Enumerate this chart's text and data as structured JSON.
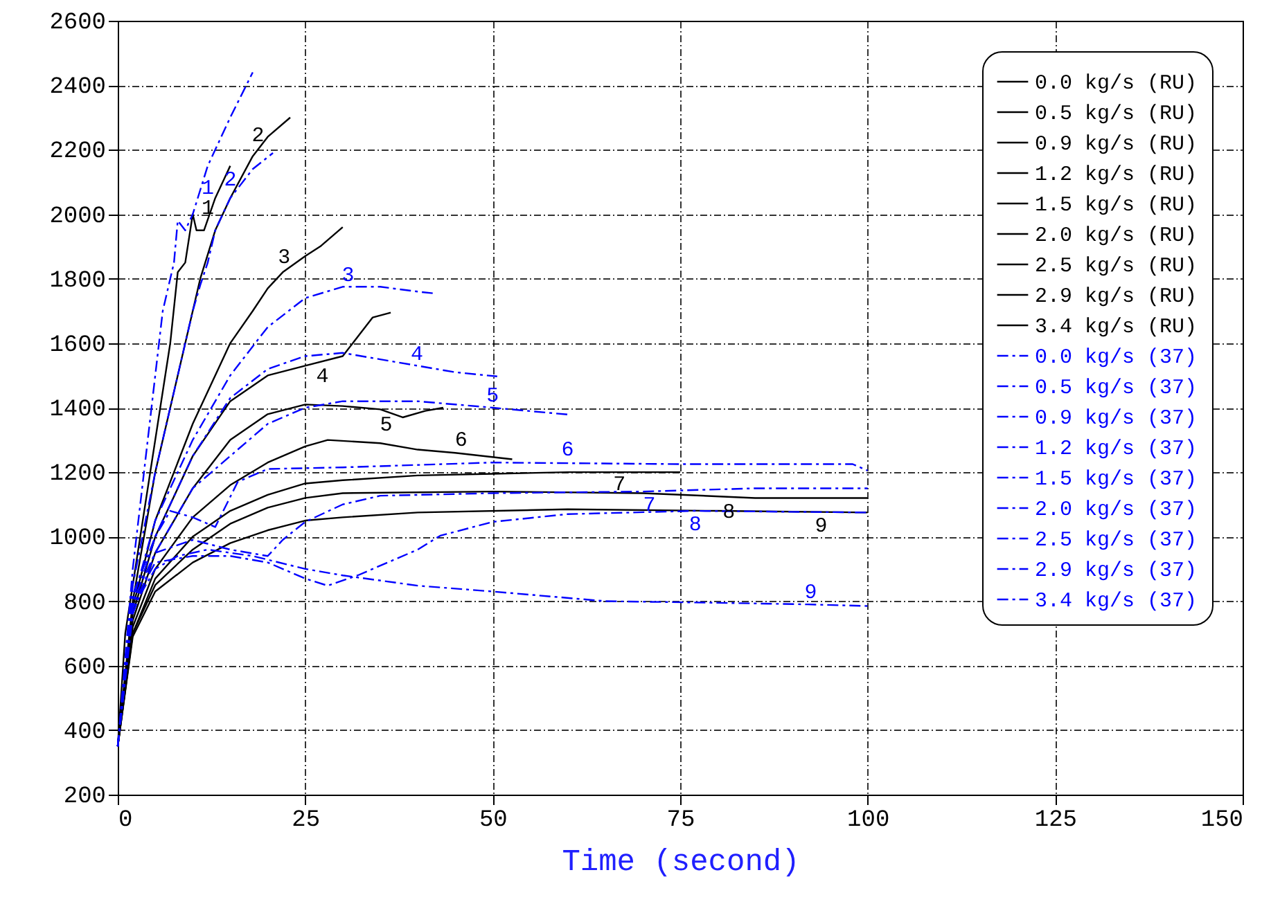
{
  "chart_data": {
    "type": "line",
    "xlabel": "Time (second)",
    "xlim": [
      0,
      150
    ],
    "xticks": [
      0,
      25,
      50,
      75,
      100,
      125,
      150
    ],
    "ylim": [
      200,
      2600
    ],
    "yticks": [
      200,
      400,
      600,
      800,
      1000,
      1200,
      1400,
      1600,
      1800,
      2000,
      2200,
      2400,
      2600
    ],
    "grid": true,
    "legend": "top right",
    "marker": "none",
    "line_style": "solid",
    "series": [
      {
        "name": "0.0 kg/s (RU)",
        "color": "#000000",
        "x": [
          0,
          1,
          3,
          5,
          7,
          8,
          9,
          10,
          10.5,
          11.5,
          13,
          15
        ],
        "values": [
          350,
          700,
          1000,
          1300,
          1600,
          1820,
          1850,
          2000,
          1950,
          1950,
          2050,
          2150
        ]
      },
      {
        "name": "0.5 kg/s (RU)",
        "color": "#000000",
        "x": [
          0,
          2,
          5,
          8,
          11,
          13,
          15,
          18,
          20,
          23
        ],
        "values": [
          350,
          800,
          1200,
          1500,
          1800,
          1950,
          2050,
          2180,
          2240,
          2300
        ]
      },
      {
        "name": "0.9 kg/s (RU)",
        "color": "#000000",
        "x": [
          0,
          2,
          5,
          10,
          15,
          18,
          20,
          22,
          25,
          27,
          30
        ],
        "values": [
          350,
          780,
          1050,
          1350,
          1600,
          1700,
          1770,
          1820,
          1870,
          1900,
          1960
        ]
      },
      {
        "name": "1.2 kg/s (RU)",
        "color": "#000000",
        "x": [
          0,
          2,
          5,
          10,
          15,
          20,
          25,
          30,
          32,
          34,
          36.4
        ],
        "values": [
          350,
          760,
          1000,
          1250,
          1420,
          1500,
          1530,
          1560,
          1620,
          1680,
          1695
        ]
      },
      {
        "name": "1.5 kg/s (RU)",
        "color": "#000000",
        "x": [
          0,
          2,
          5,
          10,
          15,
          20,
          25,
          30,
          35,
          38,
          41,
          43.4
        ],
        "values": [
          350,
          740,
          950,
          1150,
          1300,
          1380,
          1410,
          1405,
          1395,
          1370,
          1390,
          1400
        ]
      },
      {
        "name": "2.0 kg/s (RU)",
        "color": "#000000",
        "x": [
          0,
          2,
          5,
          10,
          15,
          20,
          25,
          28,
          35,
          40,
          45,
          52.6
        ],
        "values": [
          350,
          720,
          900,
          1060,
          1160,
          1230,
          1280,
          1300,
          1290,
          1270,
          1260,
          1240
        ]
      },
      {
        "name": "2.5 kg/s (RU)",
        "color": "#000000",
        "x": [
          0,
          2,
          5,
          10,
          15,
          20,
          25,
          30,
          40,
          50,
          60,
          75
        ],
        "values": [
          350,
          700,
          870,
          1000,
          1080,
          1130,
          1165,
          1175,
          1190,
          1195,
          1200,
          1200
        ]
      },
      {
        "name": "2.9 kg/s (RU)",
        "color": "#000000",
        "x": [
          0,
          2,
          5,
          10,
          15,
          20,
          25,
          30,
          50,
          70,
          85,
          100
        ],
        "values": [
          350,
          700,
          850,
          960,
          1040,
          1090,
          1120,
          1135,
          1140,
          1135,
          1120,
          1120
        ]
      },
      {
        "name": "3.4 kg/s (RU)",
        "color": "#000000",
        "x": [
          0,
          2,
          5,
          10,
          15,
          20,
          25,
          30,
          40,
          60,
          80,
          100
        ],
        "values": [
          350,
          690,
          830,
          920,
          980,
          1020,
          1050,
          1060,
          1075,
          1085,
          1080,
          1075
        ]
      },
      {
        "name": "0.0 kg/s (37)",
        "color": "#0000ff",
        "line_style": "dashed",
        "x": [
          0,
          2,
          4,
          6,
          7.5,
          8,
          9,
          10,
          12,
          15,
          18
        ],
        "values": [
          350,
          900,
          1300,
          1700,
          1850,
          1980,
          1950,
          2000,
          2150,
          2300,
          2440
        ]
      },
      {
        "name": "0.5 kg/s (37)",
        "color": "#0000ff",
        "line_style": "dashed",
        "x": [
          0,
          2,
          5,
          8,
          10,
          11,
          12,
          13,
          15,
          18,
          20.7
        ],
        "values": [
          350,
          850,
          1200,
          1500,
          1700,
          1780,
          1850,
          1950,
          2050,
          2140,
          2190
        ]
      },
      {
        "name": "0.9 kg/s (37)",
        "color": "#0000ff",
        "line_style": "dashed",
        "x": [
          0,
          2,
          5,
          10,
          15,
          20,
          25,
          30,
          35,
          40,
          42
        ],
        "values": [
          350,
          800,
          1050,
          1300,
          1500,
          1650,
          1740,
          1775,
          1775,
          1760,
          1755
        ]
      },
      {
        "name": "1.2 kg/s (37)",
        "color": "#0000ff",
        "line_style": "dashed",
        "x": [
          0,
          2,
          5,
          10,
          15,
          20,
          25,
          30,
          35,
          40,
          45,
          50.6
        ],
        "values": [
          350,
          780,
          1000,
          1250,
          1430,
          1520,
          1560,
          1570,
          1550,
          1530,
          1510,
          1497
        ]
      },
      {
        "name": "1.5 kg/s (37)",
        "color": "#0000ff",
        "line_style": "dashed",
        "x": [
          0,
          2,
          5,
          10,
          15,
          20,
          25,
          30,
          40,
          50,
          60.4
        ],
        "values": [
          350,
          760,
          950,
          1150,
          1250,
          1350,
          1400,
          1420,
          1420,
          1400,
          1378
        ]
      },
      {
        "name": "2.0 kg/s (37)",
        "color": "#0000ff",
        "line_style": "dashed",
        "x": [
          0,
          2,
          5,
          7,
          10,
          13,
          16,
          20,
          30,
          50,
          60,
          75,
          98,
          100
        ],
        "values": [
          350,
          820,
          1000,
          1080,
          1060,
          1030,
          1170,
          1210,
          1215,
          1230,
          1228,
          1225,
          1225,
          1205
        ]
      },
      {
        "name": "2.5 kg/s (37)",
        "color": "#0000ff",
        "line_style": "dashed",
        "x": [
          0,
          2,
          5,
          10,
          15,
          20,
          22,
          25,
          30,
          35,
          50,
          70,
          85,
          100
        ],
        "values": [
          350,
          800,
          950,
          990,
          960,
          940,
          990,
          1046,
          1100,
          1127,
          1135,
          1140,
          1150,
          1150
        ]
      },
      {
        "name": "2.9 kg/s (37)",
        "color": "#0000ff",
        "line_style": "dashed",
        "x": [
          0,
          2,
          5,
          10,
          15,
          20,
          25,
          28,
          32,
          40,
          43,
          50,
          60,
          77,
          100
        ],
        "values": [
          350,
          790,
          920,
          940,
          940,
          920,
          870,
          848,
          880,
          960,
          1003,
          1046,
          1070,
          1080,
          1075
        ]
      },
      {
        "name": "3.4 kg/s (37)",
        "color": "#0000ff",
        "line_style": "dashed",
        "x": [
          0,
          2,
          5,
          8,
          12,
          18,
          25,
          30,
          40,
          50,
          65,
          80,
          92,
          100
        ],
        "values": [
          350,
          780,
          900,
          940,
          960,
          940,
          900,
          880,
          848,
          830,
          800,
          795,
          790,
          785
        ]
      }
    ],
    "annotations": [
      {
        "text": "1",
        "x": 12,
        "y": 1980
      },
      {
        "text": "2",
        "x": 18.7,
        "y": 2205
      },
      {
        "text": "3",
        "x": 22.2,
        "y": 1827
      },
      {
        "text": "4",
        "x": 27.3,
        "y": 1540
      },
      {
        "text": "5",
        "x": 35.8,
        "y": 1389
      },
      {
        "text": "6",
        "x": 45.8,
        "y": 1260
      },
      {
        "text": "7",
        "x": 66.9,
        "y": 1205
      },
      {
        "text": "8",
        "x": 81.5,
        "y": 1119
      },
      {
        "text": "9",
        "x": 93.8,
        "y": 1076
      },
      {
        "text": "1",
        "x": 12,
        "y": 2124
      },
      {
        "text": "2",
        "x": 15,
        "y": 2068
      },
      {
        "text": "3",
        "x": 30.7,
        "y": 1771
      },
      {
        "text": "4",
        "x": 39.9,
        "y": 1527
      },
      {
        "text": "5",
        "x": 50,
        "y": 1398
      },
      {
        "text": "6",
        "x": 60,
        "y": 1230
      },
      {
        "text": "7",
        "x": 70.9,
        "y": 1140
      },
      {
        "text": "8",
        "x": 77,
        "y": 1080
      },
      {
        "text": "9",
        "x": 92.4,
        "y": 788
      }
    ]
  }
}
